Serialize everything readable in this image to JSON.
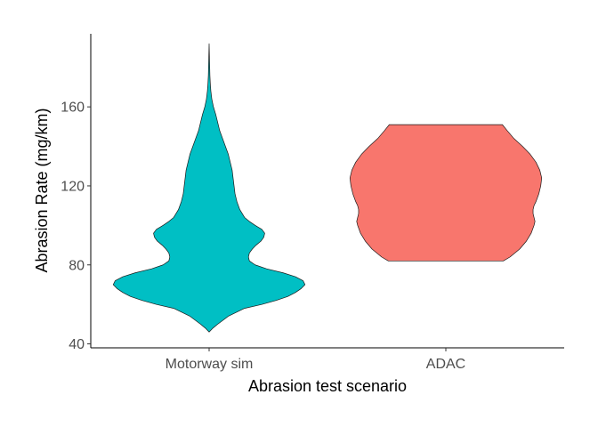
{
  "chart_data": {
    "type": "violin",
    "title": "",
    "xlabel": "Abrasion test scenario",
    "ylabel": "Abrasion Rate (mg/km)",
    "categories": [
      "Motorway sim",
      "ADAC"
    ],
    "ylim": [
      38,
      197
    ],
    "yticks": [
      40,
      80,
      120,
      160
    ],
    "grid": false,
    "legend": "none",
    "series": [
      {
        "category": "Motorway sim",
        "color": "#00BFC4",
        "min": 46,
        "max": 192,
        "density_profile": [
          [
            46,
            0.0
          ],
          [
            48,
            0.04
          ],
          [
            50,
            0.09
          ],
          [
            54,
            0.2
          ],
          [
            58,
            0.37
          ],
          [
            60,
            0.55
          ],
          [
            62,
            0.7
          ],
          [
            64,
            0.82
          ],
          [
            66,
            0.9
          ],
          [
            68,
            0.96
          ],
          [
            70,
            1.0
          ],
          [
            72,
            0.98
          ],
          [
            74,
            0.9
          ],
          [
            76,
            0.77
          ],
          [
            78,
            0.6
          ],
          [
            80,
            0.48
          ],
          [
            82,
            0.42
          ],
          [
            84,
            0.41
          ],
          [
            86,
            0.42
          ],
          [
            88,
            0.45
          ],
          [
            90,
            0.49
          ],
          [
            92,
            0.54
          ],
          [
            94,
            0.57
          ],
          [
            96,
            0.58
          ],
          [
            98,
            0.55
          ],
          [
            100,
            0.48
          ],
          [
            102,
            0.42
          ],
          [
            104,
            0.37
          ],
          [
            108,
            0.32
          ],
          [
            112,
            0.29
          ],
          [
            116,
            0.27
          ],
          [
            120,
            0.26
          ],
          [
            124,
            0.25
          ],
          [
            128,
            0.24
          ],
          [
            132,
            0.22
          ],
          [
            136,
            0.2
          ],
          [
            140,
            0.17
          ],
          [
            144,
            0.14
          ],
          [
            148,
            0.11
          ],
          [
            152,
            0.09
          ],
          [
            156,
            0.07
          ],
          [
            160,
            0.045
          ],
          [
            164,
            0.028
          ],
          [
            168,
            0.018
          ],
          [
            172,
            0.012
          ],
          [
            176,
            0.008
          ],
          [
            180,
            0.006
          ],
          [
            184,
            0.004
          ],
          [
            188,
            0.002
          ],
          [
            192,
            0.0
          ]
        ]
      },
      {
        "category": "ADAC",
        "color": "#F8766D",
        "min": 82,
        "max": 151,
        "density_profile": [
          [
            82,
            0.6
          ],
          [
            84,
            0.67
          ],
          [
            88,
            0.77
          ],
          [
            92,
            0.84
          ],
          [
            96,
            0.89
          ],
          [
            100,
            0.92
          ],
          [
            102,
            0.93
          ],
          [
            104,
            0.92
          ],
          [
            106,
            0.91
          ],
          [
            108,
            0.91
          ],
          [
            110,
            0.92
          ],
          [
            112,
            0.94
          ],
          [
            116,
            0.97
          ],
          [
            120,
            0.99
          ],
          [
            124,
            1.0
          ],
          [
            128,
            0.98
          ],
          [
            132,
            0.94
          ],
          [
            136,
            0.88
          ],
          [
            140,
            0.8
          ],
          [
            144,
            0.71
          ],
          [
            148,
            0.64
          ],
          [
            151,
            0.59
          ]
        ]
      }
    ]
  }
}
